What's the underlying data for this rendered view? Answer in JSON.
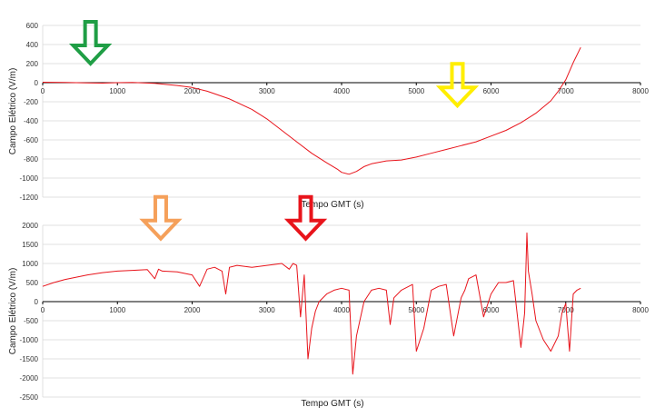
{
  "chart_data": [
    {
      "type": "line",
      "title": "",
      "xlabel": "Tempo GMT (s)",
      "ylabel": "Campo Elétrico (V/m)",
      "xlim": [
        0,
        8000
      ],
      "ylim": [
        -1200,
        600
      ],
      "xticks": [
        0,
        1000,
        2000,
        3000,
        4000,
        5000,
        6000,
        7000,
        8000
      ],
      "yticks": [
        600,
        400,
        200,
        0,
        -200,
        -400,
        -600,
        -800,
        -1000,
        -1200
      ],
      "grid": true,
      "legend": "none",
      "series": [
        {
          "color": "#e8141b",
          "x": [
            0,
            300,
            600,
            800,
            1000,
            1200,
            1500,
            1800,
            2000,
            2200,
            2500,
            2800,
            3000,
            3200,
            3400,
            3600,
            3800,
            3950,
            4000,
            4100,
            4200,
            4300,
            4400,
            4600,
            4800,
            5000,
            5200,
            5400,
            5600,
            5800,
            6000,
            6200,
            6400,
            6600,
            6800,
            6900,
            7000,
            7100,
            7200
          ],
          "y": [
            5,
            2,
            -2,
            -5,
            0,
            2,
            -8,
            -30,
            -50,
            -90,
            -170,
            -280,
            -380,
            -500,
            -620,
            -740,
            -840,
            -910,
            -940,
            -960,
            -930,
            -880,
            -850,
            -820,
            -810,
            -780,
            -740,
            -700,
            -660,
            -620,
            -560,
            -500,
            -420,
            -320,
            -190,
            -90,
            30,
            210,
            370
          ]
        }
      ],
      "annotations": [
        {
          "type": "arrow-down",
          "x": 640,
          "y": 200,
          "color": "#1f9e45",
          "name": "green-arrow"
        },
        {
          "type": "arrow-down",
          "x": 5550,
          "y": -240,
          "color": "#ffee00",
          "name": "yellow-arrow"
        }
      ]
    },
    {
      "type": "line",
      "title": "",
      "xlabel": "Tempo GMT (s)",
      "ylabel": "Campo Elétrico (V/m)",
      "xlim": [
        0,
        8000
      ],
      "ylim": [
        -2500,
        2000
      ],
      "xticks": [
        0,
        1000,
        2000,
        3000,
        4000,
        5000,
        6000,
        7000,
        8000
      ],
      "yticks": [
        2000,
        1500,
        1000,
        500,
        0,
        -500,
        -1000,
        -1500,
        -2000,
        -2500
      ],
      "grid": true,
      "legend": "none",
      "series": [
        {
          "color": "#e8141b",
          "x": [
            0,
            150,
            300,
            450,
            600,
            800,
            1000,
            1200,
            1400,
            1500,
            1550,
            1600,
            1800,
            2000,
            2100,
            2200,
            2300,
            2400,
            2450,
            2500,
            2600,
            2800,
            3000,
            3200,
            3300,
            3350,
            3400,
            3450,
            3500,
            3550,
            3600,
            3650,
            3700,
            3800,
            3900,
            4000,
            4100,
            4150,
            4200,
            4300,
            4400,
            4500,
            4600,
            4650,
            4700,
            4800,
            4900,
            4950,
            5000,
            5100,
            5200,
            5300,
            5400,
            5500,
            5600,
            5650,
            5700,
            5800,
            5900,
            6000,
            6100,
            6200,
            6300,
            6400,
            6450,
            6480,
            6500,
            6550,
            6600,
            6700,
            6800,
            6900,
            6950,
            7000,
            7050,
            7100,
            7150,
            7200
          ],
          "y": [
            400,
            500,
            580,
            640,
            700,
            760,
            800,
            820,
            840,
            600,
            850,
            800,
            780,
            700,
            400,
            850,
            900,
            800,
            200,
            900,
            950,
            900,
            950,
            1000,
            850,
            1000,
            950,
            -400,
            700,
            -1500,
            -700,
            -250,
            0,
            200,
            300,
            350,
            300,
            -1900,
            -900,
            0,
            300,
            350,
            300,
            -600,
            100,
            300,
            400,
            450,
            -1300,
            -700,
            300,
            400,
            450,
            -900,
            100,
            300,
            600,
            700,
            -400,
            200,
            500,
            500,
            550,
            -1200,
            -300,
            1800,
            800,
            200,
            -500,
            -1000,
            -1300,
            -900,
            -300,
            -50,
            -1300,
            200,
            300,
            350
          ]
        }
      ],
      "annotations": [
        {
          "type": "arrow-down",
          "x": 1580,
          "y": 1650,
          "color": "#f5a05a",
          "name": "orange-arrow"
        },
        {
          "type": "arrow-down",
          "x": 3520,
          "y": 1650,
          "color": "#e8141b",
          "name": "red-arrow"
        }
      ]
    }
  ]
}
